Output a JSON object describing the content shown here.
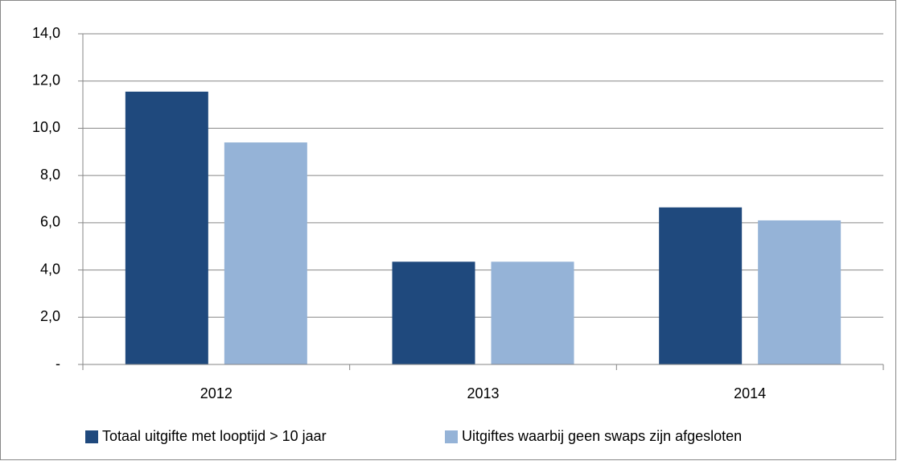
{
  "chart_data": {
    "type": "bar",
    "categories": [
      "2012",
      "2013",
      "2014"
    ],
    "series": [
      {
        "name": "Totaal uitgifte met looptijd > 10 jaar",
        "color": "#1f497d",
        "values": [
          11.55,
          4.35,
          6.65
        ]
      },
      {
        "name": "Uitgiftes waarbij geen swaps zijn afgesloten",
        "color": "#95b3d7",
        "values": [
          9.4,
          4.35,
          6.1
        ]
      }
    ],
    "ylim": [
      0,
      14
    ],
    "yticks": [
      {
        "value": 0,
        "label": "-"
      },
      {
        "value": 2,
        "label": "2,0"
      },
      {
        "value": 4,
        "label": "4,0"
      },
      {
        "value": 6,
        "label": "6,0"
      },
      {
        "value": 8,
        "label": "8,0"
      },
      {
        "value": 10,
        "label": "10,0"
      },
      {
        "value": 12,
        "label": "12,0"
      },
      {
        "value": 14,
        "label": "14,0"
      }
    ],
    "grid": true,
    "legend": "bottom"
  }
}
